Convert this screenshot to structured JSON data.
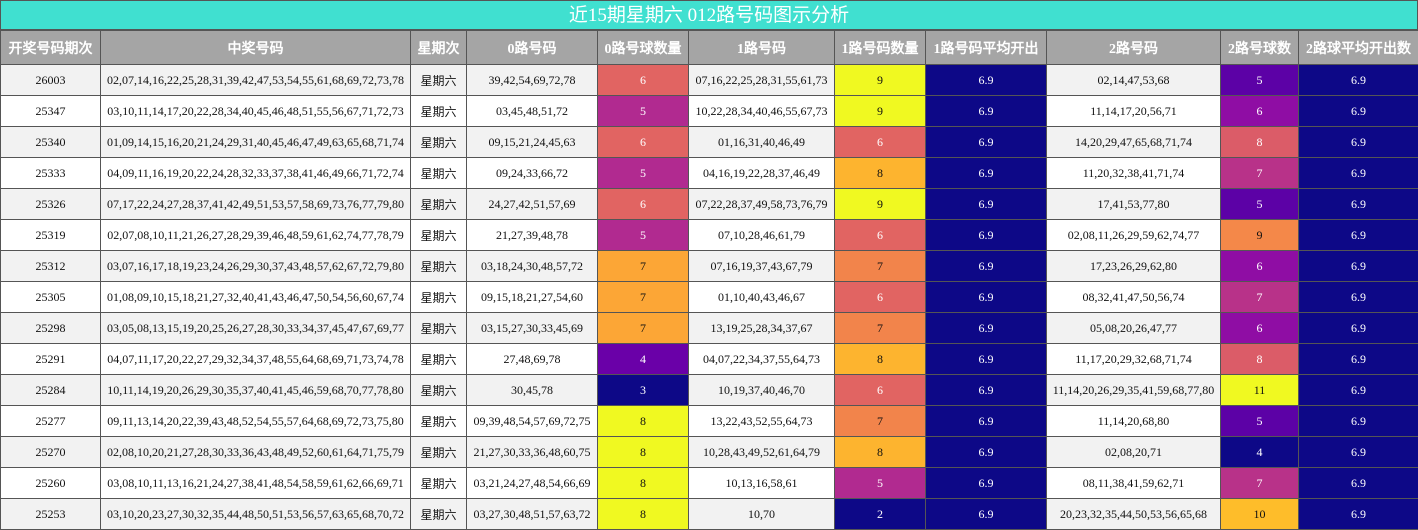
{
  "title": "近15期星期六 012路号码图示分析",
  "table": {
    "header": [
      "开奖号码期次",
      "中奖号码",
      "星期次",
      "0路号码",
      "0路号球数量",
      "1路号码",
      "1路号码数量",
      "1路号码平均开出",
      "2路号码",
      "2路号球数",
      "2路球平均开出数"
    ],
    "rows": [
      [
        "26003",
        "02,07,14,16,22,25,28,31,39,42,47,53,54,55,61,68,69,72,73,78",
        "星期六",
        "39,42,54,69,72,78",
        6,
        "07,16,22,25,28,31,55,61,73",
        9,
        6.9,
        "02,14,47,53,68",
        5,
        6.9
      ],
      [
        "25347",
        "03,10,11,14,17,20,22,28,34,40,45,46,48,51,55,56,67,71,72,73",
        "星期六",
        "03,45,48,51,72",
        5,
        "10,22,28,34,40,46,55,67,73",
        9,
        6.9,
        "11,14,17,20,56,71",
        6,
        6.9
      ],
      [
        "25340",
        "01,09,14,15,16,20,21,24,29,31,40,45,46,47,49,63,65,68,71,74",
        "星期六",
        "09,15,21,24,45,63",
        6,
        "01,16,31,40,46,49",
        6,
        6.9,
        "14,20,29,47,65,68,71,74",
        8,
        6.9
      ],
      [
        "25333",
        "04,09,11,16,19,20,22,24,28,32,33,37,38,41,46,49,66,71,72,74",
        "星期六",
        "09,24,33,66,72",
        5,
        "04,16,19,22,28,37,46,49",
        8,
        6.9,
        "11,20,32,38,41,71,74",
        7,
        6.9
      ],
      [
        "25326",
        "07,17,22,24,27,28,37,41,42,49,51,53,57,58,69,73,76,77,79,80",
        "星期六",
        "24,27,42,51,57,69",
        6,
        "07,22,28,37,49,58,73,76,79",
        9,
        6.9,
        "17,41,53,77,80",
        5,
        6.9
      ],
      [
        "25319",
        "02,07,08,10,11,21,26,27,28,29,39,46,48,59,61,62,74,77,78,79",
        "星期六",
        "21,27,39,48,78",
        5,
        "07,10,28,46,61,79",
        6,
        6.9,
        "02,08,11,26,29,59,62,74,77",
        9,
        6.9
      ],
      [
        "25312",
        "03,07,16,17,18,19,23,24,26,29,30,37,43,48,57,62,67,72,79,80",
        "星期六",
        "03,18,24,30,48,57,72",
        7,
        "07,16,19,37,43,67,79",
        7,
        6.9,
        "17,23,26,29,62,80",
        6,
        6.9
      ],
      [
        "25305",
        "01,08,09,10,15,18,21,27,32,40,41,43,46,47,50,54,56,60,67,74",
        "星期六",
        "09,15,18,21,27,54,60",
        7,
        "01,10,40,43,46,67",
        6,
        6.9,
        "08,32,41,47,50,56,74",
        7,
        6.9
      ],
      [
        "25298",
        "03,05,08,13,15,19,20,25,26,27,28,30,33,34,37,45,47,67,69,77",
        "星期六",
        "03,15,27,30,33,45,69",
        7,
        "13,19,25,28,34,37,67",
        7,
        6.9,
        "05,08,20,26,47,77",
        6,
        6.9
      ],
      [
        "25291",
        "04,07,11,17,20,22,27,29,32,34,37,48,55,64,68,69,71,73,74,78",
        "星期六",
        "27,48,69,78",
        4,
        "04,07,22,34,37,55,64,73",
        8,
        6.9,
        "11,17,20,29,32,68,71,74",
        8,
        6.9
      ],
      [
        "25284",
        "10,11,14,19,20,26,29,30,35,37,40,41,45,46,59,68,70,77,78,80",
        "星期六",
        "30,45,78",
        3,
        "10,19,37,40,46,70",
        6,
        6.9,
        "11,14,20,26,29,35,41,59,68,77,80",
        11,
        6.9
      ],
      [
        "25277",
        "09,11,13,14,20,22,39,43,48,52,54,55,57,64,68,69,72,73,75,80",
        "星期六",
        "09,39,48,54,57,69,72,75",
        8,
        "13,22,43,52,55,64,73",
        7,
        6.9,
        "11,14,20,68,80",
        5,
        6.9
      ],
      [
        "25270",
        "02,08,10,20,21,27,28,30,33,36,43,48,49,52,60,61,64,71,75,79",
        "星期六",
        "21,27,30,33,36,48,60,75",
        8,
        "10,28,43,49,52,61,64,79",
        8,
        6.9,
        "02,08,20,71",
        4,
        6.9
      ],
      [
        "25260",
        "03,08,10,11,13,16,21,24,27,38,41,48,54,58,59,61,62,66,69,71",
        "星期六",
        "03,21,24,27,48,54,66,69",
        8,
        "10,13,16,58,61",
        5,
        6.9,
        "08,11,38,41,59,62,71",
        7,
        6.9
      ],
      [
        "25253",
        "03,10,20,23,27,30,32,35,44,48,50,51,53,56,57,63,65,68,70,72",
        "星期六",
        "03,27,30,48,51,57,63,72",
        8,
        "10,70",
        2,
        6.9,
        "20,23,32,35,44,50,53,56,65,68",
        10,
        6.9
      ]
    ],
    "cell_fills": [
      [
        null,
        null,
        null,
        null,
        "#e16462",
        null,
        "#f0f921",
        "#0d0887",
        null,
        "#5c01a6",
        "#0d0887"
      ],
      [
        null,
        null,
        null,
        null,
        "#b12a90",
        null,
        "#f0f921",
        "#0d0887",
        null,
        "#8f0da4",
        "#0d0887"
      ],
      [
        null,
        null,
        null,
        null,
        "#e16462",
        null,
        "#e16462",
        "#0d0887",
        null,
        "#db5c68",
        "#0d0887"
      ],
      [
        null,
        null,
        null,
        null,
        "#b12a90",
        null,
        "#fdb42f",
        "#0d0887",
        null,
        "#b83289",
        "#0d0887"
      ],
      [
        null,
        null,
        null,
        null,
        "#e16462",
        null,
        "#f0f921",
        "#0d0887",
        null,
        "#5c01a6",
        "#0d0887"
      ],
      [
        null,
        null,
        null,
        null,
        "#b12a90",
        null,
        "#e16462",
        "#0d0887",
        null,
        "#f48849",
        "#0d0887"
      ],
      [
        null,
        null,
        null,
        null,
        "#fca636",
        null,
        "#f2844b",
        "#0d0887",
        null,
        "#8f0da4",
        "#0d0887"
      ],
      [
        null,
        null,
        null,
        null,
        "#fca636",
        null,
        "#e16462",
        "#0d0887",
        null,
        "#b83289",
        "#0d0887"
      ],
      [
        null,
        null,
        null,
        null,
        "#fca636",
        null,
        "#f2844b",
        "#0d0887",
        null,
        "#8f0da4",
        "#0d0887"
      ],
      [
        null,
        null,
        null,
        null,
        "#6a00a8",
        null,
        "#fdb42f",
        "#0d0887",
        null,
        "#db5c68",
        "#0d0887"
      ],
      [
        null,
        null,
        null,
        null,
        "#0d0887",
        null,
        "#e16462",
        "#0d0887",
        null,
        "#f0f921",
        "#0d0887"
      ],
      [
        null,
        null,
        null,
        null,
        "#f0f921",
        null,
        "#f2844b",
        "#0d0887",
        null,
        "#5c01a6",
        "#0d0887"
      ],
      [
        null,
        null,
        null,
        null,
        "#f0f921",
        null,
        "#fdb42f",
        "#0d0887",
        null,
        "#0d0887",
        "#0d0887"
      ],
      [
        null,
        null,
        null,
        null,
        "#f0f921",
        null,
        "#b12a90",
        "#0d0887",
        null,
        "#b83289",
        "#0d0887"
      ],
      [
        null,
        null,
        null,
        null,
        "#f0f921",
        null,
        "#0d0887",
        "#0d0887",
        null,
        "#febd2a",
        "#0d0887"
      ]
    ]
  }
}
